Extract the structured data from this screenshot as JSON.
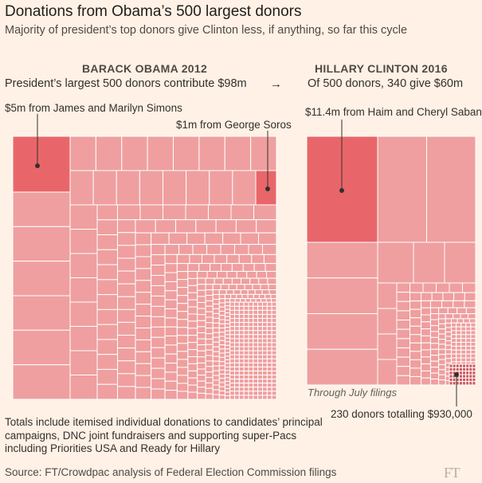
{
  "title": "Donations from Obama’s 500 largest donors",
  "subtitle": "Majority of president’s top donors give Clinton less, if anything, so far this cycle",
  "colors": {
    "cell": "#ef9f9f",
    "highlight": "#e8666a",
    "border": "#ffffff",
    "background": "#fff1e5",
    "small_donors": "#ce5a5e"
  },
  "arrow": "→",
  "footnote": "Totals include itemised individual donations to candidates’ principal campaigns, DNC joint fundraisers and supporting super-Pacs including Priorities USA and Ready for Hillary",
  "source": "Source: FT/Crowdpac analysis of Federal Election Commission filings",
  "logo": "FT",
  "chart_data": [
    {
      "type": "treemap",
      "heading": "BARACK OBAMA 2012",
      "subheading": "President’s largest 500 donors contribute $98m",
      "donors": 500,
      "total_musd": 98,
      "annotations": [
        {
          "label": "$5m from James and Marilyn Simons",
          "value_musd": 5
        },
        {
          "label": "$1m from George Soros",
          "value_musd": 1
        }
      ]
    },
    {
      "type": "treemap",
      "heading": "HILLARY CLINTON 2016",
      "subheading": "Of 500 donors, 340 give $60m",
      "donors_giving": 340,
      "total_musd": 60,
      "note": "Through July filings",
      "annotations": [
        {
          "label": "$11.4m from Haim and Cheryl Saban",
          "value_musd": 11.4
        },
        {
          "label": "230 donors totalling $930,000",
          "donors": 230,
          "value_usd": 930000
        }
      ]
    }
  ]
}
